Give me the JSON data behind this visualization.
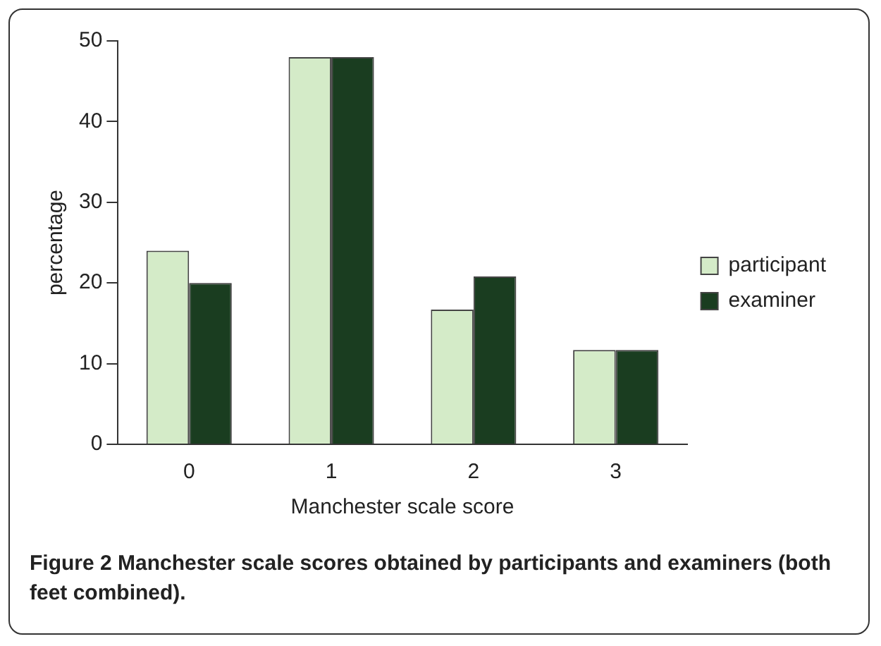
{
  "chart_data": {
    "type": "bar",
    "xlabel": "Manchester scale score",
    "ylabel": "percentage",
    "categories": [
      "0",
      "1",
      "2",
      "3"
    ],
    "series": [
      {
        "name": "participant",
        "color": "#d4ebc8",
        "values": [
          24,
          48,
          16.7,
          11.7
        ]
      },
      {
        "name": "examiner",
        "color": "#1a3d20",
        "values": [
          20,
          48,
          20.8,
          11.7
        ]
      }
    ],
    "ylim": [
      0,
      50
    ],
    "yticks": [
      0,
      10,
      20,
      30,
      40,
      50
    ],
    "grid": false,
    "legend": "right",
    "annotations": [
      "Figure 2 Manchester scale scores obtained by participants and examiners (both feet combined)."
    ]
  }
}
